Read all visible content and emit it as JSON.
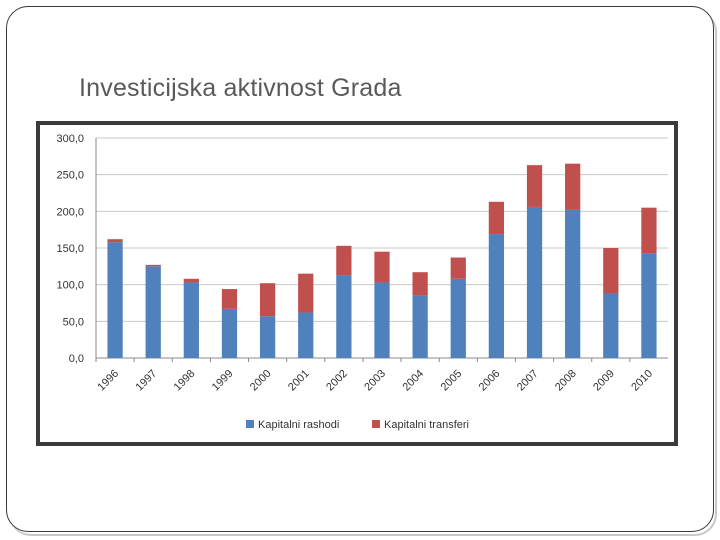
{
  "slide": {
    "title": "Investicijska aktivnost Grada"
  },
  "chart_data": {
    "type": "bar",
    "stacked": true,
    "categories": [
      "1996",
      "1997",
      "1998",
      "1999",
      "2000",
      "2001",
      "2002",
      "2003",
      "2004",
      "2005",
      "2006",
      "2007",
      "2008",
      "2009",
      "2010"
    ],
    "series": [
      {
        "name": "Kapitalni rashodi",
        "color": "#4f81bd",
        "values": [
          158,
          125,
          103,
          67,
          57,
          62,
          112,
          103,
          85,
          108,
          169,
          206,
          202,
          88,
          143
        ]
      },
      {
        "name": "Kapitalni transferi",
        "color": "#c0504d",
        "values": [
          4,
          2,
          5,
          27,
          45,
          53,
          41,
          42,
          32,
          29,
          44,
          57,
          63,
          62,
          62
        ]
      }
    ],
    "ylim": [
      0,
      300
    ],
    "yticks": [
      "0,0",
      "50,0",
      "100,0",
      "150,0",
      "200,0",
      "250,0",
      "300,0"
    ],
    "grid": true,
    "legend": "bottom"
  }
}
